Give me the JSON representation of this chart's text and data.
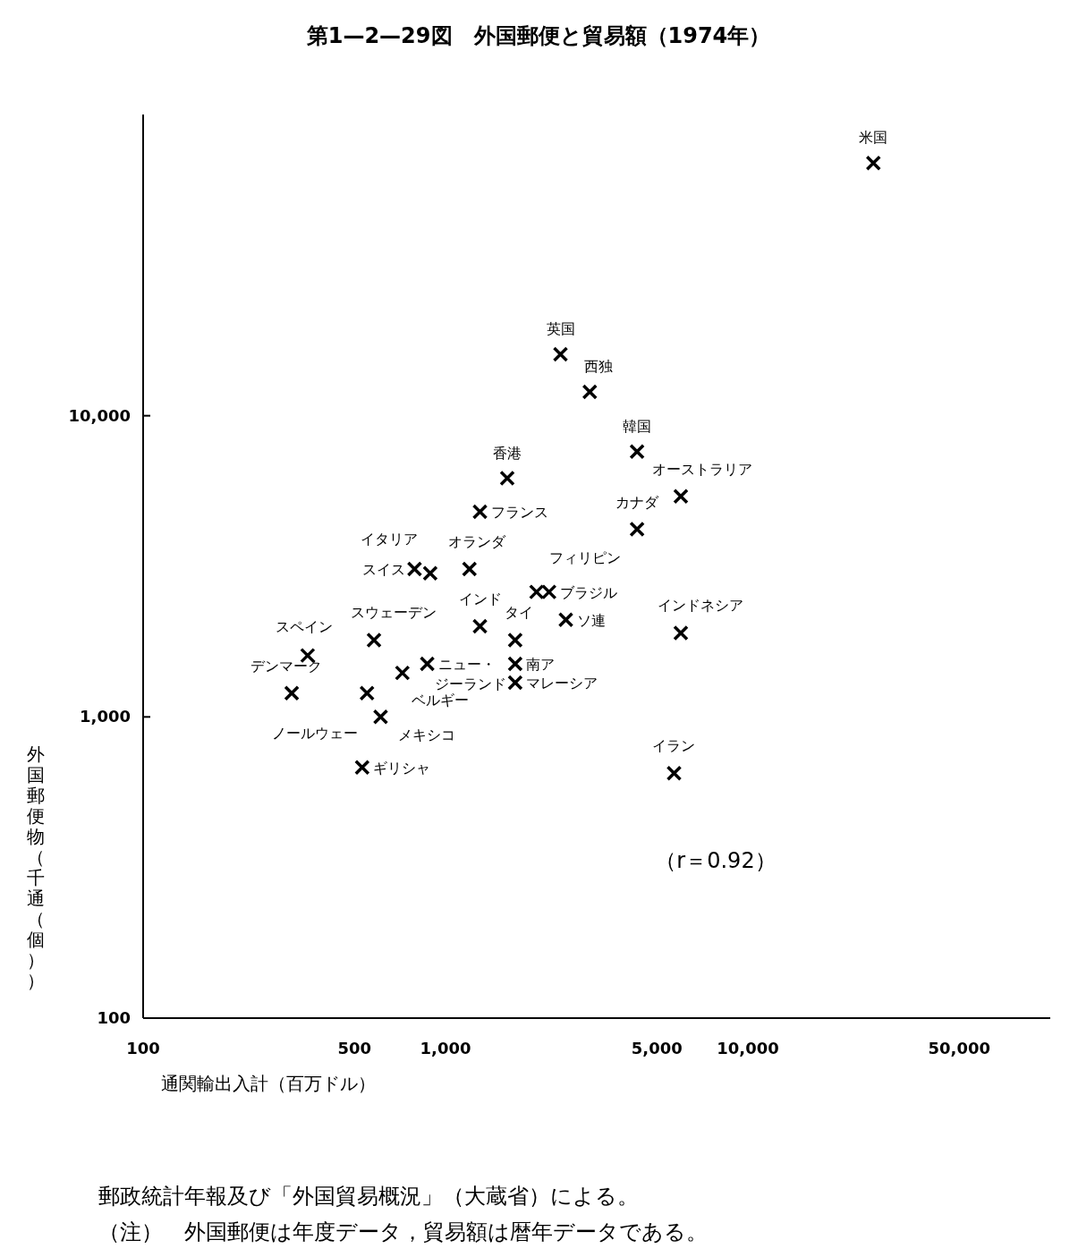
{
  "chart_data": {
    "type": "scatter",
    "title": "第1—2—29図　外国郵便と貿易額（1974年）",
    "xlabel": "通関輸出入計（百万ドル）",
    "ylabel": "外国郵便物（千通（個））",
    "log": "xy",
    "marker": "cross",
    "color": "#000000",
    "xlim": [
      100,
      100000
    ],
    "ylim": [
      100,
      100000
    ],
    "xticks": [
      100,
      500,
      {
        "value": 1000,
        "label": "1,000"
      },
      {
        "value": 5000,
        "label": "5,000"
      },
      {
        "value": 10000,
        "label": "10,000"
      },
      {
        "value": 50000,
        "label": "50,000"
      }
    ],
    "yticks": [
      100,
      {
        "value": 1000,
        "label": "1,000"
      },
      {
        "value": 10000,
        "label": "10,000"
      }
    ],
    "x": [
      26000,
      2400,
      3000,
      4300,
      6000,
      1600,
      1300,
      4300,
      890,
      790,
      1200,
      2000,
      2200,
      1300,
      2500,
      6000,
      1700,
      580,
      350,
      870,
      1700,
      720,
      1700,
      310,
      550,
      610,
      530,
      5700
    ],
    "values": [
      69000,
      16000,
      12000,
      7600,
      5400,
      6200,
      4800,
      4200,
      3000,
      3100,
      3100,
      2600,
      2600,
      2000,
      2100,
      1900,
      1800,
      1800,
      1600,
      1500,
      1500,
      1400,
      1300,
      1200,
      1200,
      1000,
      680,
      650
    ],
    "annotations": [
      {
        "text": "米国",
        "x": 26000,
        "y": 69000
      },
      {
        "text": "英国",
        "x": 2400,
        "y": 16000
      },
      {
        "text": "西独",
        "x": 3000,
        "y": 12000
      },
      {
        "text": "韓国",
        "x": 4300,
        "y": 7600
      },
      {
        "text": "オーストラリア",
        "x": 6000,
        "y": 5400
      },
      {
        "text": "香港",
        "x": 1600,
        "y": 6200
      },
      {
        "text": "フランス",
        "x": 1300,
        "y": 4800
      },
      {
        "text": "カナダ",
        "x": 4300,
        "y": 4200
      },
      {
        "text": "イタリア",
        "x": 890,
        "y": 3000
      },
      {
        "text": "スイス",
        "x": 790,
        "y": 3100
      },
      {
        "text": "オランダ",
        "x": 1200,
        "y": 3100
      },
      {
        "text": "フィリピン",
        "x": 2000,
        "y": 2600
      },
      {
        "text": "ブラジル",
        "x": 2200,
        "y": 2600
      },
      {
        "text": "インド",
        "x": 1300,
        "y": 2000
      },
      {
        "text": "ソ連",
        "x": 2500,
        "y": 2100
      },
      {
        "text": "インドネシア",
        "x": 6000,
        "y": 1900
      },
      {
        "text": "タイ",
        "x": 1700,
        "y": 1800
      },
      {
        "text": "スウェーデン",
        "x": 580,
        "y": 1800
      },
      {
        "text": "スペイン",
        "x": 350,
        "y": 1600
      },
      {
        "text": "ニュー・ジーランド",
        "x": 870,
        "y": 1500
      },
      {
        "text": "南ア",
        "x": 1700,
        "y": 1500
      },
      {
        "text": "ベルギー",
        "x": 720,
        "y": 1400
      },
      {
        "text": "マレーシア",
        "x": 1700,
        "y": 1300
      },
      {
        "text": "デンマーク",
        "x": 310,
        "y": 1200
      },
      {
        "text": "ノールウェー",
        "x": 550,
        "y": 1200
      },
      {
        "text": "メキシコ",
        "x": 610,
        "y": 1000
      },
      {
        "text": "ギリシャ",
        "x": 530,
        "y": 680
      },
      {
        "text": "イラン",
        "x": 5700,
        "y": 650
      },
      "（r＝0.92）",
      "郵政統計年報及び「外国貿易概況」（大蔵省）による。",
      "（注）　外国郵便は年度データ，貿易額は暦年データである。"
    ]
  }
}
